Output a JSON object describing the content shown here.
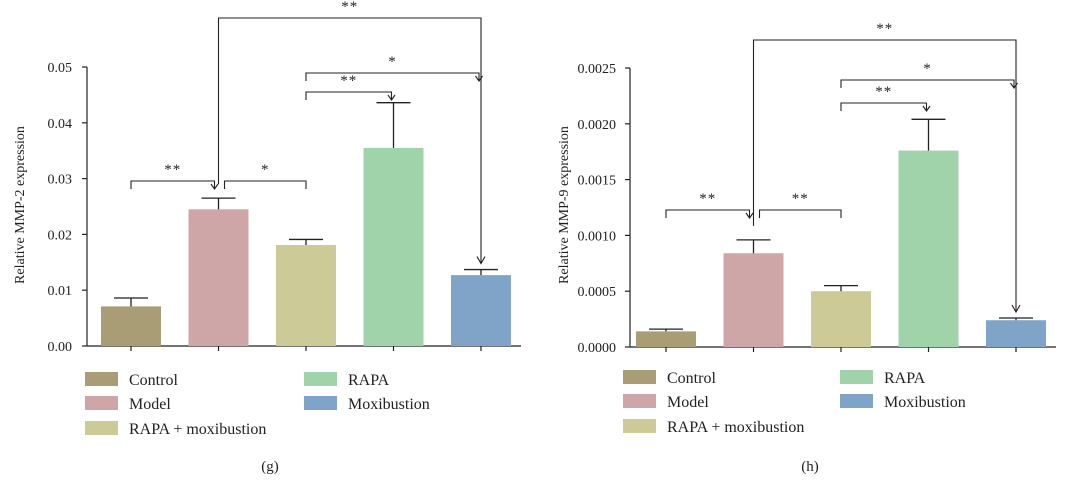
{
  "chart_data": [
    {
      "type": "bar",
      "panel_label": "(g)",
      "ylabel": "Relative MMP-2 expression",
      "ylim": [
        0,
        0.05
      ],
      "yticks": [
        "0.00",
        "0.01",
        "0.02",
        "0.03",
        "0.04",
        "0.05"
      ],
      "categories": [
        "Control",
        "Model",
        "RAPA + moxibustion",
        "RAPA",
        "Moxibustion"
      ],
      "values": [
        0.0071,
        0.0245,
        0.0181,
        0.0355,
        0.0127
      ],
      "errors": [
        0.0015,
        0.002,
        0.001,
        0.0081,
        0.001
      ],
      "significance": [
        {
          "from": 0,
          "to": 1,
          "label": "**"
        },
        {
          "from": 1,
          "to": 2,
          "label": "*"
        },
        {
          "from": 2,
          "to": 3,
          "label": "**"
        },
        {
          "from": 2,
          "to": 4,
          "label": "*"
        },
        {
          "from": 1,
          "to": 4,
          "label": "**"
        }
      ],
      "legend": [
        "Control",
        "Model",
        "RAPA + moxibustion",
        "RAPA",
        "Moxibustion"
      ]
    },
    {
      "type": "bar",
      "panel_label": "(h)",
      "ylabel": "Relative MMP-9 expression",
      "ylim": [
        0,
        0.0025
      ],
      "yticks": [
        "0.0000",
        "0.0005",
        "0.0010",
        "0.0015",
        "0.0020",
        "0.0025"
      ],
      "categories": [
        "Control",
        "Model",
        "RAPA + moxibustion",
        "RAPA",
        "Moxibustion"
      ],
      "values": [
        0.00014,
        0.00084,
        0.0005,
        0.00176,
        0.00024
      ],
      "errors": [
        2e-05,
        0.00012,
        5e-05,
        0.00028,
        2e-05
      ],
      "significance": [
        {
          "from": 0,
          "to": 1,
          "label": "**"
        },
        {
          "from": 1,
          "to": 2,
          "label": "**"
        },
        {
          "from": 2,
          "to": 3,
          "label": "**"
        },
        {
          "from": 2,
          "to": 4,
          "label": "*"
        },
        {
          "from": 1,
          "to": 4,
          "label": "**"
        }
      ],
      "legend": [
        "Control",
        "Model",
        "RAPA + moxibustion",
        "RAPA",
        "Moxibustion"
      ]
    }
  ],
  "colors": [
    "#a89d74",
    "#cfa6a8",
    "#cccb98",
    "#a0d3aa",
    "#80a4c7"
  ]
}
